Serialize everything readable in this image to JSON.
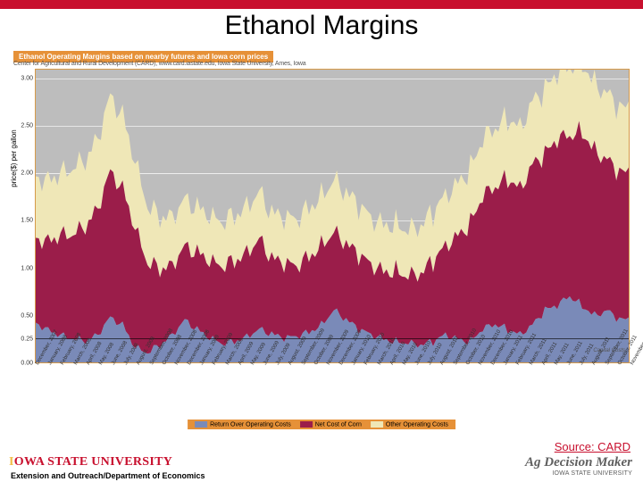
{
  "title": "Ethanol Margins",
  "source": "Source: CARD",
  "footer": {
    "university": "IOWA STATE UNIVERSITY",
    "extension": "Extension and Outreach/Department of Economics",
    "brand1": "Ag Decision Maker",
    "brand2": "IOWA STATE UNIVERSITY"
  },
  "chart": {
    "type": "stacked-area",
    "title_bar": "Ethanol Operating Margins based on nearby futures and Iowa corn prices",
    "subtitle": "Center for Agricultural and Rural Development (CARD), www.card.iastate.edu, Iowa State University, Ames, Iowa",
    "ylabel": "price($) per gallon",
    "capital_label": "Capital Costs",
    "background_color": "#bdbdbd",
    "border_color": "#d69a4a",
    "grid_color": "#ffffff",
    "ylim": [
      0,
      3.1
    ],
    "yticks": [
      0.0,
      0.25,
      0.5,
      1.0,
      1.5,
      2.0,
      2.5,
      3.0
    ],
    "capital_cost_line": 0.25,
    "xlabels": [
      "December, 2007",
      "January, 2008",
      "February, 2008",
      "March, 2008",
      "April, 2008",
      "May, 2008",
      "June, 2008",
      "July, 2008",
      "August, 2008",
      "September, 2008",
      "October, 2008",
      "November, 2008",
      "December, 2008",
      "January, 2009",
      "February, 2009",
      "March, 2009",
      "April, 2009",
      "May, 2009",
      "June, 2009",
      "July, 2009",
      "August, 2009",
      "September, 2009",
      "October, 2009",
      "November, 2009",
      "December, 2009",
      "January, 2010",
      "February, 2010",
      "March, 2010",
      "April, 2010",
      "May, 2010",
      "June, 2010",
      "July, 2010",
      "August, 2010",
      "September, 2010",
      "October, 2010",
      "November, 2010",
      "December, 2010",
      "January, 2011",
      "February, 2011",
      "March, 2011",
      "April, 2011",
      "May, 2011",
      "June, 2011",
      "July, 2011",
      "August, 2011",
      "September, 2011",
      "October, 2011",
      "November, 2011"
    ],
    "series": [
      {
        "name": "Return Over Operating Costs",
        "color": "#7a8ab8",
        "legend_label": "Return Over Operating Costs",
        "data": [
          0.42,
          0.35,
          0.28,
          0.25,
          0.22,
          0.3,
          0.48,
          0.4,
          0.15,
          0.1,
          0.18,
          0.3,
          0.45,
          0.35,
          0.25,
          0.2,
          0.22,
          0.28,
          0.35,
          0.3,
          0.25,
          0.28,
          0.32,
          0.4,
          0.55,
          0.45,
          0.35,
          0.3,
          0.25,
          0.22,
          0.2,
          0.18,
          0.22,
          0.3,
          0.25,
          0.22,
          0.35,
          0.4,
          0.35,
          0.3,
          0.4,
          0.55,
          0.6,
          0.7,
          0.6,
          0.5,
          0.55,
          0.45
        ]
      },
      {
        "name": "Net Cost of Corn",
        "color": "#9b1d4a",
        "legend_label": "Net Cost of Corn",
        "data": [
          0.9,
          0.95,
          1.05,
          1.1,
          1.2,
          1.35,
          1.55,
          1.45,
          1.25,
          0.95,
          0.8,
          0.75,
          0.78,
          0.82,
          0.8,
          0.82,
          0.85,
          0.9,
          0.95,
          0.8,
          0.78,
          0.75,
          0.8,
          0.85,
          0.82,
          0.8,
          0.78,
          0.75,
          0.72,
          0.75,
          0.7,
          0.75,
          0.85,
          0.95,
          1.1,
          1.25,
          1.4,
          1.45,
          1.6,
          1.55,
          1.7,
          1.65,
          1.75,
          1.7,
          1.85,
          1.75,
          1.6,
          1.55
        ]
      },
      {
        "name": "Other Operating Costs",
        "color": "#efe7b7",
        "legend_label": "Other Operating Costs",
        "data": [
          0.65,
          0.65,
          0.65,
          0.7,
          0.7,
          0.75,
          0.8,
          0.78,
          0.7,
          0.6,
          0.55,
          0.52,
          0.5,
          0.48,
          0.47,
          0.47,
          0.48,
          0.5,
          0.5,
          0.48,
          0.48,
          0.5,
          0.52,
          0.53,
          0.55,
          0.54,
          0.52,
          0.5,
          0.5,
          0.5,
          0.48,
          0.5,
          0.52,
          0.54,
          0.56,
          0.58,
          0.6,
          0.62,
          0.64,
          0.65,
          0.67,
          0.68,
          0.7,
          0.72,
          0.73,
          0.72,
          0.7,
          0.68
        ]
      }
    ],
    "legend_bg": "#e69138",
    "title_bar_bg": "#e69138",
    "title_fontsize": 8,
    "label_fontsize": 8,
    "tick_fontsize": 6,
    "line_width": 0
  },
  "red_bar_color": "#c8102e"
}
